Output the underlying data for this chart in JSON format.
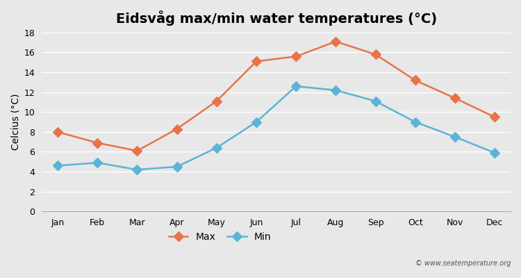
{
  "title": "Eidsvåg max/min water temperatures (°C)",
  "ylabel": "Celcius (°C)",
  "months": [
    "Jan",
    "Feb",
    "Mar",
    "Apr",
    "May",
    "Jun",
    "Jul",
    "Aug",
    "Sep",
    "Oct",
    "Nov",
    "Dec"
  ],
  "max_temps": [
    8.0,
    6.9,
    6.1,
    8.3,
    11.1,
    15.1,
    15.6,
    17.1,
    15.8,
    13.2,
    11.4,
    9.5
  ],
  "min_temps": [
    4.6,
    4.9,
    4.2,
    4.5,
    6.4,
    9.0,
    12.6,
    12.2,
    11.1,
    9.0,
    7.5,
    5.9
  ],
  "max_color": "#e8734a",
  "min_color": "#5ab4d6",
  "background_color": "#e8e8e8",
  "plot_bg_color": "#e8e8e8",
  "ylim": [
    0,
    18
  ],
  "yticks": [
    0,
    2,
    4,
    6,
    8,
    10,
    12,
    14,
    16,
    18
  ],
  "legend_labels": [
    "Max",
    "Min"
  ],
  "watermark": "© www.seatemperature.org",
  "title_fontsize": 14,
  "label_fontsize": 10,
  "tick_fontsize": 9,
  "marker": "D",
  "markersize": 7,
  "linewidth": 1.8
}
